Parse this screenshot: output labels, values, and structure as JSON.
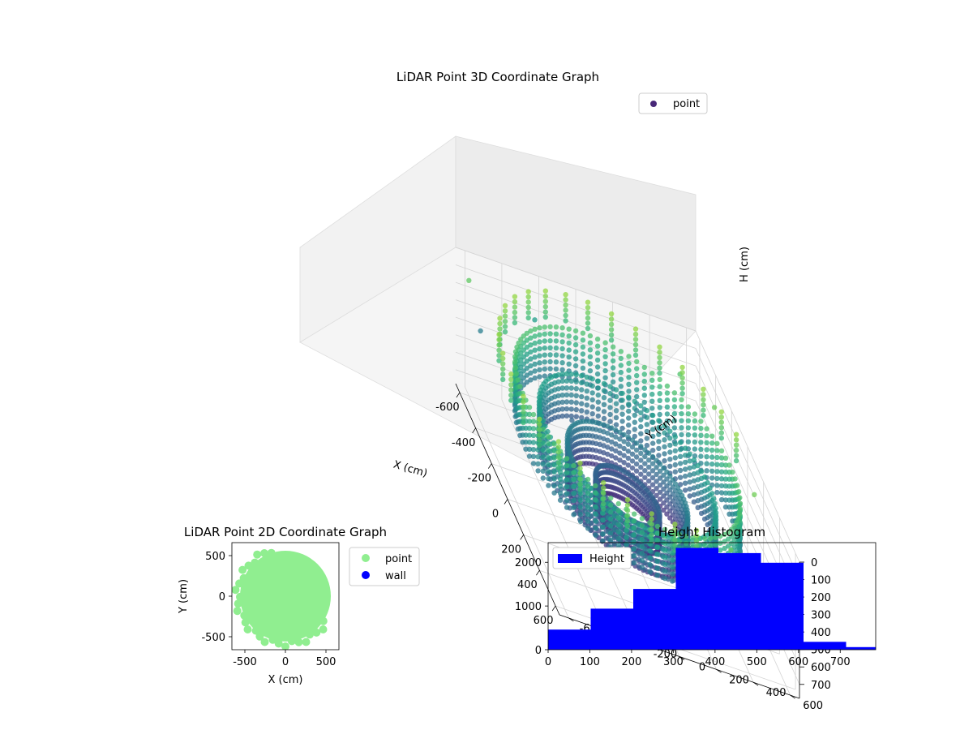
{
  "chart_data": [
    {
      "type": "scatter",
      "title": "LiDAR Point 3D Coordinate Graph",
      "projection": "3d",
      "xlabel": "X (cm)",
      "ylabel": "Y (cm)",
      "zlabel": "H (cm)",
      "x_ticks": [
        -600,
        -400,
        -200,
        0,
        200,
        400,
        600
      ],
      "y_ticks": [
        -600,
        -400,
        -200,
        0,
        200,
        400,
        600
      ],
      "z_ticks": [
        0,
        100,
        200,
        300,
        400,
        500,
        600,
        700
      ],
      "xlim": [
        -650,
        650
      ],
      "ylim": [
        -650,
        650
      ],
      "zlim": [
        0,
        780
      ],
      "z_inverted": true,
      "colormap": "viridis",
      "legend": {
        "entries": [
          "point"
        ],
        "placement": "upper right"
      },
      "series": [
        {
          "name": "point",
          "color": "#482878",
          "rings": [
            {
              "radius": 560,
              "heights": [
                160,
                200,
                240,
                280,
                320,
                360,
                400,
                440
              ]
            },
            {
              "radius": 440,
              "heights": [
                300,
                340,
                380,
                420,
                460,
                500,
                540
              ]
            },
            {
              "radius": 300,
              "heights": [
                420,
                460,
                500,
                540,
                580,
                620,
                660
              ]
            },
            {
              "radius": 160,
              "heights": [
                520,
                560,
                600,
                640,
                680
              ]
            }
          ],
          "outliers": [
            [
              -600,
              -600,
              120
            ],
            [
              -640,
              -520,
              420
            ],
            [
              -700,
              -200,
              300
            ],
            [
              -500,
              500,
              150
            ],
            [
              -300,
              600,
              100
            ],
            [
              200,
              600,
              90
            ],
            [
              600,
              300,
              110
            ],
            [
              640,
              0,
              200
            ],
            [
              -350,
              -150,
              500
            ]
          ]
        }
      ],
      "grid": true
    },
    {
      "type": "scatter",
      "title": "LiDAR Point 2D Coordinate Graph",
      "xlabel": "X (cm)",
      "ylabel": "Y (cm)",
      "x_ticks": [
        -500,
        0,
        500
      ],
      "y_ticks": [
        -500,
        0,
        500
      ],
      "xlim": [
        -660,
        660
      ],
      "ylim": [
        -660,
        660
      ],
      "legend": {
        "entries": [
          "point",
          "wall"
        ],
        "placement": "outside right"
      },
      "series": [
        {
          "name": "point",
          "color": "#90ee90",
          "shape": "disk",
          "radius": 560
        },
        {
          "name": "wall",
          "color": "#0000ff",
          "values": []
        }
      ]
    },
    {
      "type": "bar",
      "title": "Height Histogram",
      "xlabel": "",
      "ylabel": "",
      "x_ticks": [
        0,
        100,
        200,
        300,
        400,
        500,
        600,
        700
      ],
      "y_ticks": [
        0,
        1000,
        2000
      ],
      "xlim": [
        0,
        785
      ],
      "ylim": [
        0,
        2450
      ],
      "bin_edges": [
        0,
        102,
        204,
        306,
        408,
        510,
        612,
        714,
        816
      ],
      "values": [
        460,
        940,
        1390,
        2330,
        2210,
        1990,
        180,
        60
      ],
      "color": "#0000ff",
      "legend": {
        "entries": [
          "Height"
        ],
        "placement": "upper left"
      },
      "series": [
        {
          "name": "Height",
          "color": "#0000ff"
        }
      ]
    }
  ]
}
